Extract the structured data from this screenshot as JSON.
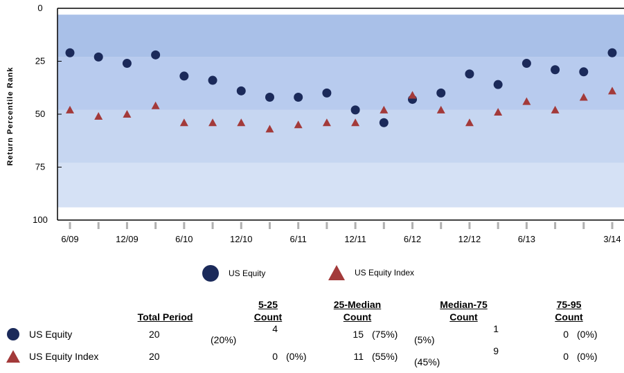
{
  "chart_data": {
    "type": "scatter",
    "ylabel": "Return Percentile Rank",
    "ylim": [
      0,
      100
    ],
    "y_inverted": true,
    "yticks": [
      "0",
      "25",
      "50",
      "75",
      "100"
    ],
    "x_tick_labels": [
      "6/09",
      "12/09",
      "6/10",
      "12/10",
      "6/11",
      "12/11",
      "6/12",
      "12/12",
      "6/13",
      "3/14"
    ],
    "bands": [
      {
        "from": 3,
        "to": 23,
        "color": "#a9c0e8"
      },
      {
        "from": 23,
        "to": 48,
        "color": "#b8cbee"
      },
      {
        "from": 48,
        "to": 73,
        "color": "#c6d6f1"
      },
      {
        "from": 73,
        "to": 94,
        "color": "#d5e1f5"
      }
    ],
    "grid": false,
    "legend_position": "bottom",
    "series": [
      {
        "name": "US Equity",
        "marker": "circle",
        "color": "#1b2a5a",
        "values": [
          21,
          23,
          26,
          22,
          32,
          34,
          39,
          42,
          42,
          40,
          48,
          54,
          43,
          40,
          31,
          36,
          26,
          29,
          30,
          21
        ]
      },
      {
        "name": "US Equity Index",
        "marker": "triangle",
        "color": "#a33a3a",
        "values": [
          48,
          51,
          50,
          46,
          54,
          54,
          54,
          57,
          55,
          54,
          54,
          48,
          41,
          48,
          54,
          49,
          44,
          48,
          42,
          39
        ]
      }
    ]
  },
  "legend": {
    "items": [
      {
        "label": "US Equity"
      },
      {
        "label": "US Equity Index"
      }
    ]
  },
  "summary_table": {
    "headers": {
      "total": "Total Period",
      "c1_a": "5-25",
      "c1_b": "Count",
      "c2_a": "25-Median",
      "c2_b": "Count",
      "c3_a": "Median-75",
      "c3_b": "Count",
      "c4_a": "75-95",
      "c4_b": "Count"
    },
    "rows": [
      {
        "label": "US Equity",
        "total": "20",
        "c1": "4",
        "c1p": "(20%)",
        "c2": "15",
        "c2p": "(75%)",
        "c3": "1",
        "c3p": "(5%)",
        "c4": "0",
        "c4p": "(0%)"
      },
      {
        "label": "US Equity Index",
        "total": "20",
        "c1": "0",
        "c1p": "(0%)",
        "c2": "11",
        "c2p": "(55%)",
        "c3": "9",
        "c3p": "(45%)",
        "c4": "0",
        "c4p": "(0%)"
      }
    ]
  }
}
